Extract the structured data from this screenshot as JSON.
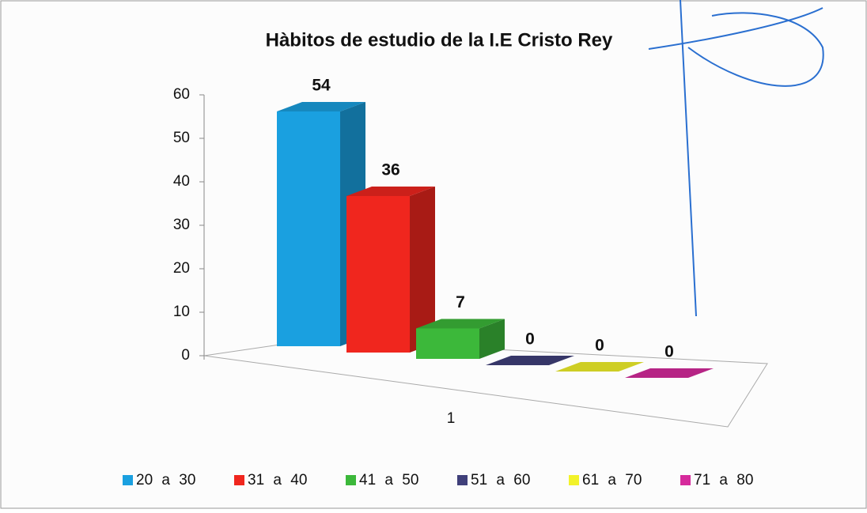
{
  "chart_data": {
    "type": "bar3d",
    "title": "Hàbitos de estudio de la I.E Cristo Rey",
    "categories": [
      "1"
    ],
    "series": [
      {
        "name": "20 a 30",
        "color": "#1aa0e0",
        "values": [
          54
        ]
      },
      {
        "name": "31 a 40",
        "color": "#f0261e",
        "values": [
          36
        ]
      },
      {
        "name": "41 a 50",
        "color": "#3cb83a",
        "values": [
          7
        ]
      },
      {
        "name": "51 a 60",
        "color": "#40407a",
        "values": [
          0
        ]
      },
      {
        "name": "61 a 70",
        "color": "#f2f22a",
        "values": [
          0
        ]
      },
      {
        "name": "71 a 80",
        "color": "#d62a9c",
        "values": [
          0
        ]
      }
    ],
    "ylim": [
      0,
      60
    ],
    "yticks": [
      0,
      10,
      20,
      30,
      40,
      50,
      60
    ],
    "legend": "bottom"
  }
}
